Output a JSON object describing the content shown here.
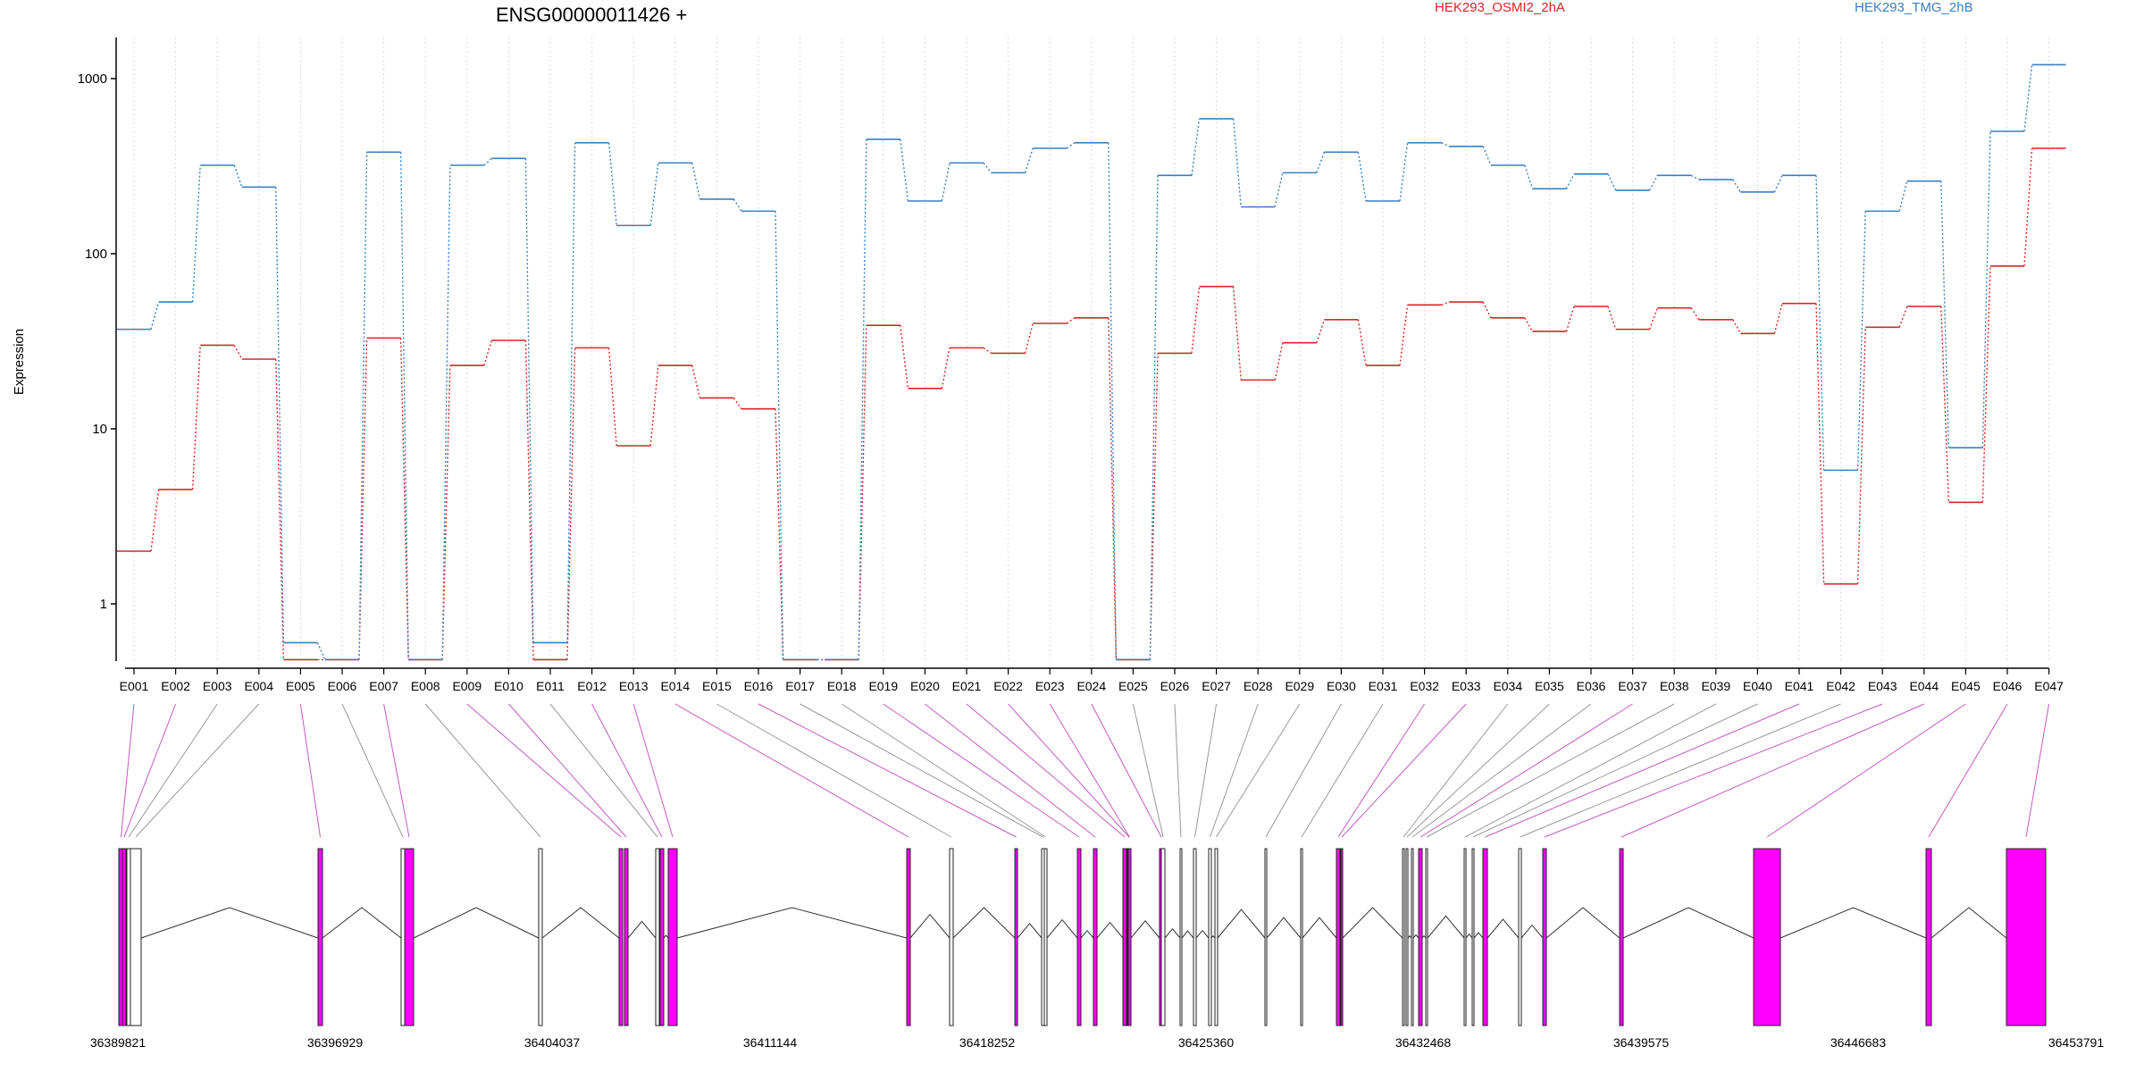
{
  "chart_data": {
    "type": "line",
    "title": "ENSG00000011426 +",
    "ylabel": "Expression",
    "yscale": "log",
    "ylim": [
      0.4,
      1500
    ],
    "yticks": [
      1,
      10,
      100,
      1000
    ],
    "ytick_labels": [
      "1",
      "10",
      "100",
      "1000"
    ],
    "grid": "vertical dotted lines at each exon",
    "legend_placement": "top",
    "categories": [
      "E001",
      "E002",
      "E003",
      "E004",
      "E005",
      "E006",
      "E007",
      "E008",
      "E009",
      "E010",
      "E011",
      "E012",
      "E013",
      "E014",
      "E015",
      "E016",
      "E017",
      "E018",
      "E019",
      "E020",
      "E021",
      "E022",
      "E023",
      "E024",
      "E025",
      "E026",
      "E027",
      "E028",
      "E029",
      "E030",
      "E031",
      "E032",
      "E033",
      "E034",
      "E035",
      "E036",
      "E037",
      "E038",
      "E039",
      "E040",
      "E041",
      "E042",
      "E043",
      "E044",
      "E045",
      "E046",
      "E047"
    ],
    "series": [
      {
        "name": "HEK293_OSMI2_2hA",
        "color": "#d62728",
        "values": [
          2,
          4.5,
          30,
          25,
          0.48,
          0.48,
          33,
          0.48,
          23,
          32,
          0.48,
          29,
          8,
          23,
          15,
          13,
          0.48,
          0.48,
          39,
          17,
          29,
          27,
          40,
          43,
          0.48,
          27,
          65,
          19,
          31,
          42,
          23,
          51,
          53,
          43,
          36,
          50,
          37,
          49,
          42,
          35,
          52,
          1.3,
          38,
          50,
          3.8,
          85,
          400
        ]
      },
      {
        "name": "HEK293_TMG_2hB",
        "color": "#3a7fc1",
        "values": [
          37,
          53,
          320,
          240,
          0.6,
          0.48,
          380,
          0.48,
          320,
          350,
          0.6,
          430,
          145,
          330,
          205,
          175,
          0.48,
          0.48,
          450,
          200,
          330,
          290,
          400,
          430,
          0.48,
          280,
          590,
          185,
          290,
          380,
          200,
          430,
          410,
          320,
          235,
          285,
          230,
          280,
          265,
          225,
          280,
          5.8,
          175,
          260,
          7.8,
          500,
          1200
        ]
      }
    ],
    "gene_model": {
      "coordinate_labels": [
        "36389821",
        "36396929",
        "36404037",
        "36411144",
        "36418252",
        "36425360",
        "36432468",
        "36439575",
        "36446683",
        "36453791"
      ],
      "exon_colors": [
        "#ff00ff",
        "#ff00ff",
        "#ffffff",
        "#ffffff",
        "#ff00ff",
        "#ffffff",
        "#ff00ff",
        "#ffffff",
        "#ff00ff",
        "#ff00ff",
        "#ffffff",
        "#ff00ff",
        "#ff00ff",
        "#ff00ff",
        "#ffffff",
        "#ff00ff",
        "#ffffff",
        "#ffffff",
        "#ff00ff",
        "#ff00ff",
        "#ff00ff",
        "#ff00ff",
        "#ff00ff",
        "#ff00ff",
        "#ffffff",
        "#ffffff",
        "#ffffff",
        "#ffffff",
        "#ffffff",
        "#ffffff",
        "#ffffff",
        "#ff00ff",
        "#ff00ff",
        "#ffffff",
        "#ffffff",
        "#ffffff",
        "#ff00ff",
        "#ffffff",
        "#ffffff",
        "#ffffff",
        "#ff00ff",
        "#ffffff",
        "#ff00ff",
        "#ff00ff",
        "#ff00ff",
        "#ff00ff",
        "#ff00ff"
      ]
    }
  }
}
